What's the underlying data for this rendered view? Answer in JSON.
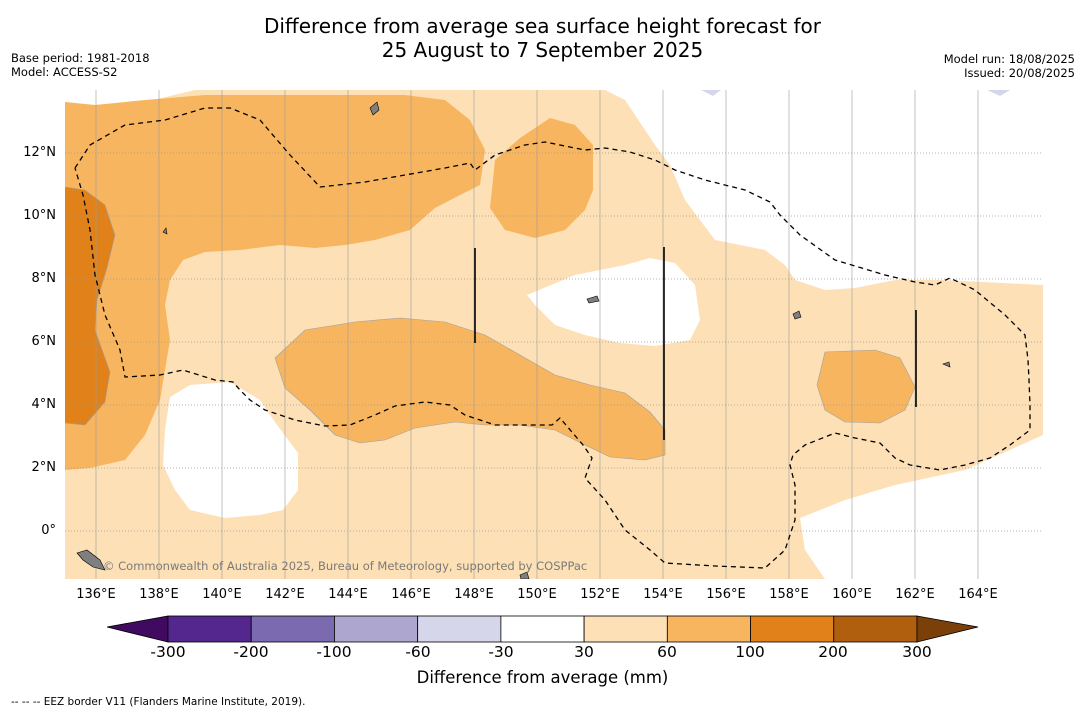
{
  "title": {
    "line1": "Difference from average sea surface height forecast for",
    "line2": "25 August to 7 September 2025"
  },
  "meta_left": {
    "base_period": "Base period: 1981-2018",
    "model": "Model: ACCESS-S2"
  },
  "meta_right": {
    "model_run": "Model run: 18/08/2025",
    "issued": "Issued: 20/08/2025"
  },
  "map": {
    "longitude_ticks": [
      "136°E",
      "138°E",
      "140°E",
      "142°E",
      "144°E",
      "146°E",
      "148°E",
      "150°E",
      "152°E",
      "154°E",
      "156°E",
      "158°E",
      "160°E",
      "162°E",
      "164°E"
    ],
    "latitude_ticks": [
      "12°N",
      "10°N",
      "8°N",
      "6°N",
      "4°N",
      "2°N",
      "0°"
    ],
    "copyright": "© Commonwealth of Australia 2025, Bureau of Meteorology, supported by COSPPac",
    "colors": {
      "c30_60": "#fde0b6",
      "c60_100": "#f8b55f",
      "c100_200": "#e08219",
      "c200_300": "#b05f0f",
      "neg_small": "#d6d6ea",
      "land": "#7f7f7f"
    }
  },
  "colorbar": {
    "label": "Difference from average (mm)",
    "ticks": [
      "-300",
      "-200",
      "-100",
      "-60",
      "-30",
      "30",
      "60",
      "100",
      "200",
      "300"
    ],
    "segments": [
      "#54278f",
      "#7c6ab0",
      "#ada7d0",
      "#d6d6ea",
      "#ffffff",
      "#fde0b6",
      "#f8b55f",
      "#e08219",
      "#b05f0f"
    ],
    "extend_low": "#3f0a60",
    "extend_high": "#7b3f0a"
  },
  "footnote": "--  --  -- EEZ border V11 (Flanders Marine Institute, 2019)."
}
